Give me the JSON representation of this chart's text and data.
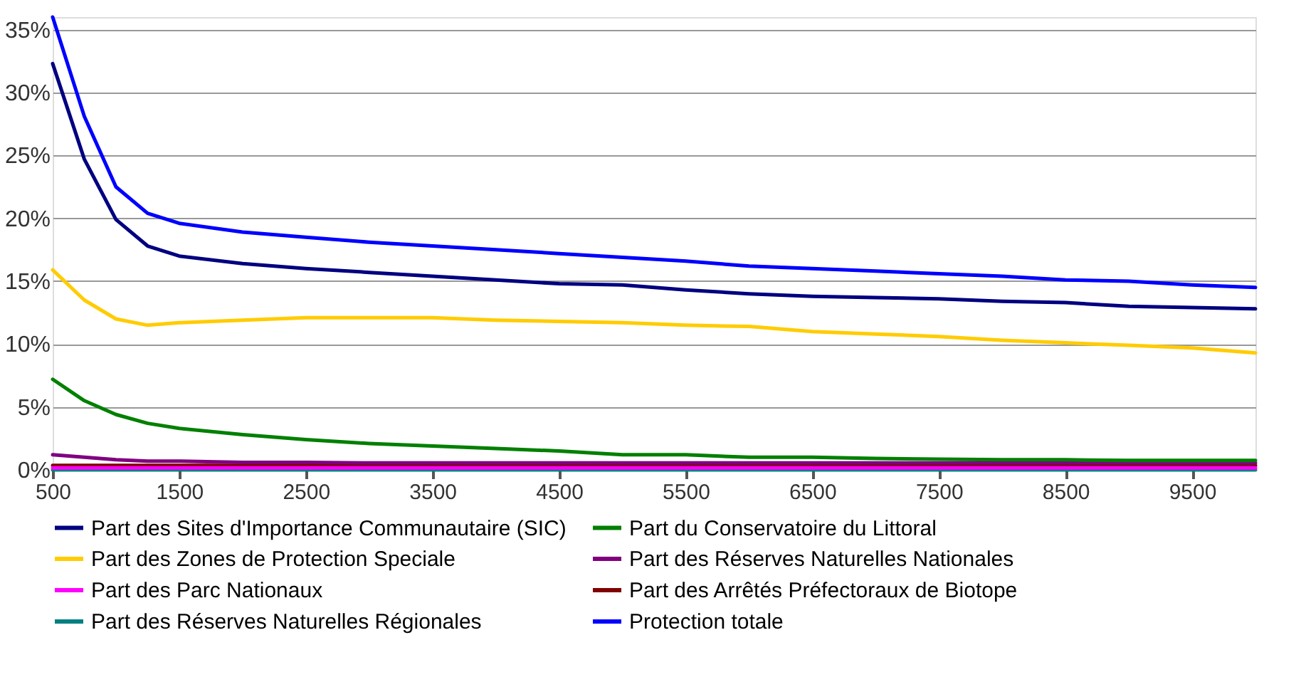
{
  "chart_data": {
    "type": "line",
    "x": [
      500,
      750,
      1000,
      1250,
      1500,
      2000,
      2500,
      3000,
      3500,
      4000,
      4500,
      5000,
      5500,
      6000,
      6500,
      7000,
      7500,
      8000,
      8500,
      9000,
      9500,
      10000
    ],
    "series": [
      {
        "name": "Part des Sites d'Importance Communautaire (SIC)",
        "color": "#000080",
        "values": [
          32.3,
          24.7,
          19.9,
          17.8,
          17.0,
          16.4,
          16.0,
          15.7,
          15.4,
          15.1,
          14.8,
          14.7,
          14.3,
          14.0,
          13.8,
          13.7,
          13.6,
          13.4,
          13.3,
          13.0,
          12.9,
          12.8
        ]
      },
      {
        "name": "Part du Conservatoire du Littoral",
        "color": "#008000",
        "values": [
          7.2,
          5.5,
          4.4,
          3.7,
          3.3,
          2.8,
          2.4,
          2.1,
          1.9,
          1.7,
          1.5,
          1.2,
          1.2,
          1.0,
          1.0,
          0.9,
          0.85,
          0.8,
          0.8,
          0.75,
          0.75,
          0.75
        ]
      },
      {
        "name": "Part des Zones de Protection Speciale",
        "color": "#ffcc00",
        "values": [
          15.9,
          13.5,
          12.0,
          11.5,
          11.7,
          11.9,
          12.1,
          12.1,
          12.1,
          11.9,
          11.8,
          11.7,
          11.5,
          11.4,
          11.0,
          10.8,
          10.6,
          10.3,
          10.1,
          9.9,
          9.7,
          9.3
        ]
      },
      {
        "name": "Part des Réserves Naturelles Nationales",
        "color": "#800080",
        "values": [
          1.2,
          1.0,
          0.8,
          0.7,
          0.7,
          0.6,
          0.6,
          0.55,
          0.55,
          0.55,
          0.55,
          0.55,
          0.55,
          0.55,
          0.55,
          0.55,
          0.55,
          0.55,
          0.55,
          0.55,
          0.55,
          0.55
        ]
      },
      {
        "name": "Part des Parc Nationaux",
        "color": "#ff00ff",
        "values": [
          0.15,
          0.15,
          0.15,
          0.15,
          0.15,
          0.15,
          0.15,
          0.15,
          0.15,
          0.15,
          0.15,
          0.15,
          0.15,
          0.15,
          0.15,
          0.15,
          0.15,
          0.15,
          0.15,
          0.15,
          0.15,
          0.15
        ]
      },
      {
        "name": "Part des Arrêtés Préfectoraux de Biotope",
        "color": "#800000",
        "values": [
          0.35,
          0.35,
          0.35,
          0.35,
          0.35,
          0.35,
          0.35,
          0.35,
          0.35,
          0.35,
          0.35,
          0.35,
          0.35,
          0.35,
          0.35,
          0.35,
          0.35,
          0.35,
          0.35,
          0.35,
          0.35,
          0.35
        ]
      },
      {
        "name": "Part des Réserves Naturelles Régionales",
        "color": "#008080",
        "values": [
          0.0,
          0.0,
          0.0,
          0.0,
          0.0,
          0.0,
          0.0,
          0.0,
          0.0,
          0.0,
          0.0,
          0.0,
          0.0,
          0.0,
          0.0,
          0.0,
          0.0,
          0.0,
          0.0,
          0.0,
          0.0,
          0.0
        ]
      },
      {
        "name": "Protection totale",
        "color": "#0000ff",
        "values": [
          36.0,
          28.1,
          22.5,
          20.4,
          19.6,
          18.9,
          18.5,
          18.1,
          17.8,
          17.5,
          17.2,
          16.9,
          16.6,
          16.2,
          16.0,
          15.8,
          15.6,
          15.4,
          15.1,
          15.0,
          14.7,
          14.5
        ]
      }
    ],
    "xlim": [
      500,
      10000
    ],
    "xticks": [
      500,
      1500,
      2500,
      3500,
      4500,
      5500,
      6500,
      7500,
      8500,
      9500
    ],
    "ylim": [
      0,
      36
    ],
    "yticks": [
      {
        "value": 0,
        "label": "0%"
      },
      {
        "value": 5,
        "label": "5%"
      },
      {
        "value": 10,
        "label": "10%"
      },
      {
        "value": 15,
        "label": "15%"
      },
      {
        "value": 20,
        "label": "20%"
      },
      {
        "value": 25,
        "label": "25%"
      },
      {
        "value": 30,
        "label": "30%"
      },
      {
        "value": 35,
        "label": "35%"
      }
    ],
    "grid": "y",
    "legend": "bottom",
    "marker": "none",
    "line_style": "solid"
  }
}
